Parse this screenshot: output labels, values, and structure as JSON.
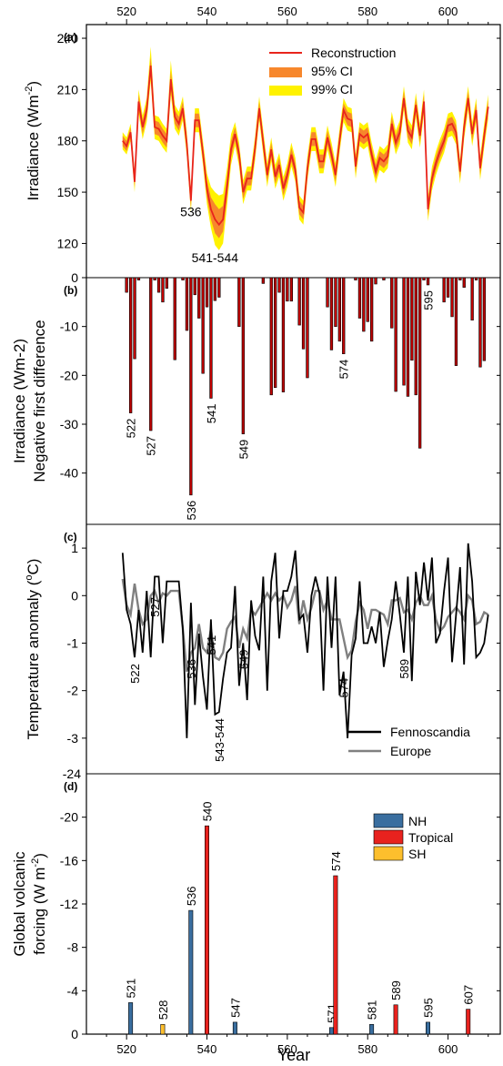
{
  "figure": {
    "xlabel": "Year",
    "xticks": [
      520,
      540,
      560,
      580,
      600
    ],
    "xlim": [
      510,
      613
    ]
  },
  "chart_data": [
    {
      "panel": "(a)",
      "type": "line",
      "ylabel": "Irradiance (Wm",
      "ylabel_sup": "-2",
      "ylabel_end": ")",
      "ylim": [
        100,
        248
      ],
      "yticks": [
        120,
        150,
        180,
        210,
        240
      ],
      "legend": {
        "placement": "top-right",
        "entries": [
          "Reconstruction",
          "95% CI",
          "99% CI"
        ]
      },
      "colors": {
        "reconstruction": "#e8241c",
        "ci95": "#f7872c",
        "ci99": "#fff200"
      },
      "annotations": [
        {
          "text": "536",
          "x": 536,
          "y": 136
        },
        {
          "text": "541-544",
          "x": 542,
          "y": 109
        }
      ],
      "x": [
        519,
        520,
        521,
        522,
        523,
        524,
        525,
        526,
        527,
        528,
        529,
        530,
        531,
        532,
        533,
        534,
        535,
        536,
        537,
        538,
        539,
        540,
        541,
        542,
        543,
        544,
        545,
        546,
        547,
        548,
        549,
        550,
        551,
        552,
        553,
        554,
        555,
        556,
        557,
        558,
        559,
        560,
        561,
        562,
        563,
        564,
        565,
        566,
        567,
        568,
        569,
        570,
        571,
        572,
        573,
        574,
        575,
        576,
        577,
        578,
        579,
        580,
        581,
        582,
        583,
        584,
        585,
        586,
        587,
        588,
        589,
        590,
        591,
        592,
        593,
        594,
        595,
        596,
        597,
        598,
        599,
        600,
        601,
        602,
        603,
        604,
        605,
        606,
        607,
        608,
        609,
        610
      ],
      "values": [
        180,
        177,
        185,
        156,
        203,
        188,
        198,
        224,
        188,
        187,
        183,
        180,
        216,
        194,
        190,
        199,
        178,
        145,
        192,
        192,
        173,
        152,
        140,
        134,
        131,
        134,
        153,
        175,
        184,
        172,
        150,
        158,
        158,
        176,
        199,
        179,
        160,
        175,
        159,
        166,
        152,
        160,
        172,
        163,
        141,
        138,
        164,
        181,
        181,
        168,
        168,
        182,
        172,
        160,
        180,
        198,
        193,
        192,
        165,
        184,
        182,
        184,
        172,
        162,
        170,
        168,
        171,
        190,
        179,
        185,
        205,
        186,
        182,
        201,
        183,
        203,
        140,
        158,
        167,
        174,
        180,
        189,
        190,
        185,
        162,
        188,
        205,
        184,
        198,
        164,
        183,
        200
      ],
      "ci95_lower": [
        177,
        174,
        182,
        153,
        199,
        184,
        194,
        219,
        184,
        183,
        179,
        176,
        211,
        190,
        186,
        195,
        174,
        141,
        188,
        188,
        169,
        147,
        134,
        126,
        123,
        127,
        147,
        170,
        180,
        168,
        146,
        154,
        154,
        172,
        195,
        175,
        156,
        171,
        155,
        162,
        148,
        156,
        168,
        159,
        137,
        134,
        160,
        177,
        177,
        164,
        164,
        178,
        168,
        156,
        176,
        194,
        189,
        188,
        161,
        180,
        178,
        180,
        168,
        158,
        166,
        164,
        167,
        186,
        175,
        181,
        201,
        182,
        178,
        197,
        179,
        199,
        136,
        154,
        163,
        170,
        176,
        185,
        186,
        181,
        158,
        184,
        201,
        180,
        194,
        160,
        179,
        196
      ],
      "ci95_upper": [
        183,
        180,
        188,
        159,
        207,
        192,
        202,
        229,
        192,
        191,
        187,
        184,
        221,
        198,
        194,
        203,
        182,
        149,
        196,
        196,
        177,
        157,
        147,
        143,
        140,
        142,
        159,
        180,
        188,
        176,
        154,
        162,
        162,
        180,
        203,
        183,
        164,
        179,
        163,
        170,
        156,
        164,
        176,
        167,
        145,
        142,
        168,
        185,
        185,
        172,
        172,
        186,
        176,
        164,
        184,
        202,
        197,
        196,
        169,
        188,
        186,
        188,
        176,
        166,
        174,
        172,
        175,
        194,
        183,
        189,
        209,
        190,
        186,
        205,
        187,
        207,
        144,
        162,
        171,
        178,
        184,
        193,
        194,
        189,
        166,
        192,
        209,
        188,
        202,
        168,
        187,
        204
      ],
      "ci99_lower": [
        175,
        172,
        180,
        150,
        196,
        181,
        191,
        215,
        181,
        180,
        176,
        173,
        207,
        187,
        183,
        192,
        171,
        138,
        185,
        185,
        166,
        143,
        129,
        119,
        116,
        120,
        142,
        166,
        177,
        165,
        143,
        151,
        151,
        169,
        192,
        172,
        153,
        168,
        152,
        159,
        145,
        153,
        165,
        156,
        134,
        131,
        157,
        174,
        174,
        161,
        161,
        175,
        165,
        153,
        173,
        191,
        186,
        185,
        158,
        177,
        175,
        177,
        165,
        155,
        163,
        161,
        164,
        183,
        172,
        178,
        198,
        179,
        175,
        194,
        176,
        196,
        133,
        151,
        160,
        167,
        173,
        182,
        183,
        178,
        155,
        181,
        198,
        177,
        191,
        157,
        176,
        193
      ],
      "ci99_upper": [
        185,
        182,
        190,
        162,
        210,
        195,
        205,
        235,
        195,
        194,
        190,
        187,
        227,
        201,
        197,
        206,
        185,
        152,
        199,
        199,
        180,
        161,
        153,
        150,
        148,
        149,
        164,
        184,
        191,
        179,
        157,
        165,
        165,
        183,
        206,
        186,
        167,
        182,
        166,
        173,
        159,
        167,
        179,
        170,
        148,
        145,
        171,
        188,
        188,
        175,
        175,
        189,
        179,
        167,
        187,
        205,
        200,
        199,
        172,
        191,
        189,
        191,
        179,
        169,
        177,
        175,
        178,
        197,
        186,
        192,
        212,
        193,
        189,
        208,
        190,
        210,
        147,
        165,
        174,
        181,
        187,
        196,
        197,
        192,
        169,
        195,
        212,
        191,
        205,
        171,
        190,
        207
      ]
    },
    {
      "panel": "(b)",
      "type": "bar",
      "ylabel": "Irradiance (Wm-2)",
      "ylabel2": "Negative first difference",
      "ylim": [
        -50.5,
        0
      ],
      "yticks": [
        0,
        -10,
        -20,
        -30,
        -40
      ],
      "colors": {
        "bar": "#c00000",
        "edge": "#000000"
      },
      "x": [
        520,
        521,
        522,
        523,
        526,
        527,
        528,
        529,
        530,
        532,
        534,
        535,
        536,
        537,
        538,
        539,
        540,
        541,
        542,
        543,
        548,
        549,
        554,
        556,
        557,
        558,
        559,
        560,
        561,
        563,
        564,
        565,
        570,
        571,
        572,
        573,
        574,
        577,
        578,
        579,
        580,
        581,
        582,
        584,
        586,
        587,
        589,
        590,
        591,
        592,
        593,
        594,
        595,
        599,
        600,
        601,
        602,
        603,
        604,
        606,
        607,
        608,
        609
      ],
      "values": [
        -3,
        -27.7,
        -16.6,
        -0.5,
        -31.3,
        -0.5,
        -3,
        -5,
        -2.2,
        -16.8,
        -0.5,
        -10.8,
        -44.5,
        -3.5,
        -8.3,
        -19.6,
        -6,
        -24.7,
        -4.7,
        -4,
        -10,
        -32,
        -1.2,
        -24,
        -22.5,
        -3,
        -23.4,
        -4.8,
        -4.8,
        -9.7,
        -14.6,
        -20.5,
        -6,
        -14.8,
        -10,
        -13,
        -15.6,
        -0.5,
        -8.3,
        -11,
        -9,
        -13,
        -1.3,
        -0.5,
        -10.3,
        -23.3,
        -22,
        -24.3,
        -16.9,
        -24,
        -34.9,
        -0.5,
        -1.5,
        -5,
        -4,
        -8,
        -18,
        -0.5,
        -2,
        -8.7,
        -0.5,
        -18.3,
        -17
      ],
      "labels": [
        {
          "text": "522",
          "x": 521
        },
        {
          "text": "527",
          "x": 526
        },
        {
          "text": "536",
          "x": 536
        },
        {
          "text": "541",
          "x": 541
        },
        {
          "text": "549",
          "x": 549
        },
        {
          "text": "574",
          "x": 574
        },
        {
          "text": "595",
          "x": 595
        }
      ]
    },
    {
      "panel": "(c)",
      "type": "line",
      "ylabel": "Temperature anomaly (",
      "ylabel_deg": "o",
      "ylabel_end": "C)",
      "ylim": [
        -3.75,
        1.5
      ],
      "yticks": [
        1,
        0,
        -1,
        -2,
        -3
      ],
      "legend": {
        "placement": "bottom-right",
        "entries": [
          "Fennoscandia",
          "Europe"
        ]
      },
      "series": [
        {
          "name": "Fennoscandia",
          "color": "#000000",
          "values": [
            0.9,
            -0.3,
            -0.6,
            -1.3,
            -0.3,
            -1.2,
            0.1,
            -1.3,
            0.4,
            0.4,
            -1,
            0.3,
            0.3,
            0.3,
            0.3,
            -0.7,
            -3,
            -0.15,
            -2.3,
            -0.8,
            -1.7,
            -2.4,
            -0.5,
            -2.5,
            -2.45,
            -1.75,
            -1.2,
            -1.1,
            0.2,
            -1.9,
            -1,
            -2.2,
            -0.1,
            -0.85,
            -1.15,
            0.4,
            -2,
            0.3,
            0.9,
            -0.9,
            0.1,
            0.1,
            0.4,
            0.95,
            -0.5,
            -0.4,
            -1.2,
            0,
            0.4,
            0.05,
            -2,
            0.4,
            -1.1,
            0.4,
            -2.1,
            -1.6,
            -3,
            -1.25,
            -0.9,
            0.3,
            -1,
            -1,
            -0.65,
            -1,
            -0.35,
            -1.5,
            -0.95,
            -0.5,
            0.3,
            -0.4,
            -1.2,
            0.4,
            -1.8,
            0.5,
            -0.2,
            0.7,
            -0.1,
            0.8,
            -1,
            -0.8,
            0.1,
            0.8,
            -1.4,
            -0.4,
            0.6,
            -1.45,
            1.1,
            0.3,
            -1.3,
            -1.2,
            -1,
            -0.4
          ]
        },
        {
          "name": "Europe",
          "color": "#808080",
          "values": [
            0.35,
            -0.2,
            -0.4,
            0.25,
            -0.3,
            -0.6,
            -0.5,
            0,
            0.1,
            -0.15,
            0.05,
            0,
            0.1,
            0.1,
            0.1,
            -0.7,
            -1.6,
            -1.2,
            -1.1,
            -0.6,
            -1.1,
            -1.2,
            -0.7,
            -1.3,
            -1.35,
            -1.2,
            -0.7,
            -0.55,
            -0.45,
            -1.1,
            -0.7,
            -0.9,
            -0.3,
            -0.4,
            -0.25,
            -0.1,
            0.05,
            -0.1,
            0.05,
            -0.1,
            0,
            -0.25,
            -0.1,
            0.2,
            -0.6,
            -0.1,
            -0.5,
            -0.25,
            0.1,
            0.1,
            -0.3,
            -0.1,
            -0.5,
            -0.5,
            -0.5,
            -0.9,
            -1.3,
            -1.15,
            -0.55,
            -0.15,
            -0.3,
            -0.7,
            -0.3,
            -0.3,
            -0.35,
            -0.4,
            -0.6,
            -0.1,
            -0.1,
            -0.05,
            -0.35,
            -0.3,
            -0.5,
            -0.15,
            0,
            -0.2,
            -0.2,
            0,
            -0.5,
            -0.75,
            -0.65,
            -0.45,
            -0.35,
            -0.25,
            -0.35,
            -0.5,
            0,
            -0.1,
            -0.6,
            -0.55,
            -0.35,
            -0.4
          ]
        }
      ],
      "x": [
        519,
        520,
        521,
        522,
        523,
        524,
        525,
        526,
        527,
        528,
        529,
        530,
        531,
        532,
        533,
        534,
        535,
        536,
        537,
        538,
        539,
        540,
        541,
        542,
        543,
        544,
        545,
        546,
        547,
        548,
        549,
        550,
        551,
        552,
        553,
        554,
        555,
        556,
        557,
        558,
        559,
        560,
        561,
        562,
        563,
        564,
        565,
        566,
        567,
        568,
        569,
        570,
        571,
        572,
        573,
        574,
        575,
        576,
        577,
        578,
        579,
        580,
        581,
        582,
        583,
        584,
        585,
        586,
        587,
        588,
        589,
        590,
        591,
        592,
        593,
        594,
        595,
        596,
        597,
        598,
        599,
        600,
        601,
        602,
        603,
        604,
        605,
        606,
        607,
        608,
        609,
        610
      ],
      "labels": [
        {
          "text": "522",
          "x": 522
        },
        {
          "text": "527",
          "x": 527
        },
        {
          "text": "536",
          "x": 536
        },
        {
          "text": "541",
          "x": 541
        },
        {
          "text": "543-544",
          "x": 543
        },
        {
          "text": "549",
          "x": 549
        },
        {
          "text": "574",
          "x": 574
        },
        {
          "text": "589",
          "x": 589
        }
      ]
    },
    {
      "panel": "(d)",
      "type": "bar",
      "ylabel": "Global volcanic",
      "ylabel2": "forcing (W m",
      "ylabel2_sup": "-2",
      "ylabel2_end": ")",
      "ylim": [
        0,
        -24
      ],
      "yticks": [
        0,
        -4,
        -8,
        -12,
        -16,
        -20,
        -24
      ],
      "legend": {
        "placement": "top-right",
        "entries": [
          {
            "label": "NH",
            "color": "#3a6e9f"
          },
          {
            "label": "Tropical",
            "color": "#e8221e"
          },
          {
            "label": "SH",
            "color": "#fdbf2d"
          }
        ]
      },
      "bars": [
        {
          "x": 521,
          "value": -2.9,
          "group": "NH",
          "label": "521"
        },
        {
          "x": 529,
          "value": -0.9,
          "group": "SH",
          "label": "528"
        },
        {
          "x": 536,
          "value": -11.4,
          "group": "NH",
          "label": "536"
        },
        {
          "x": 540,
          "value": -19.2,
          "group": "Tropical",
          "label": "540"
        },
        {
          "x": 547,
          "value": -1.1,
          "group": "NH",
          "label": "547"
        },
        {
          "x": 571,
          "value": -0.6,
          "group": "NH",
          "label": "571"
        },
        {
          "x": 572,
          "value": -14.6,
          "group": "Tropical",
          "label": "574"
        },
        {
          "x": 581,
          "value": -0.9,
          "group": "NH",
          "label": "581"
        },
        {
          "x": 587,
          "value": -2.7,
          "group": "Tropical",
          "label": "589"
        },
        {
          "x": 595,
          "value": -1.1,
          "group": "NH",
          "label": "595"
        },
        {
          "x": 605,
          "value": -2.3,
          "group": "Tropical",
          "label": "607"
        }
      ]
    }
  ]
}
